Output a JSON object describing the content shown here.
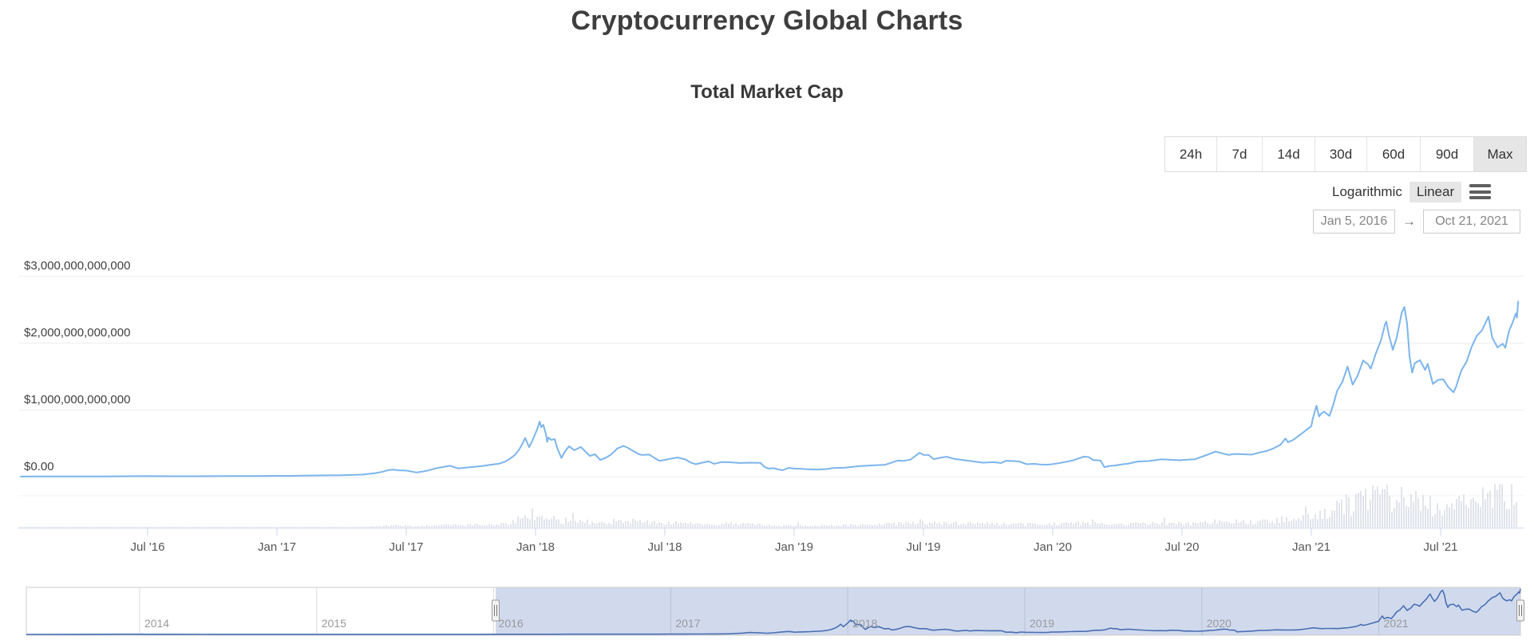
{
  "page": {
    "title": "Cryptocurrency Global Charts",
    "subtitle": "Total Market Cap"
  },
  "range_selector": {
    "buttons": [
      {
        "label": "24h",
        "selected": false
      },
      {
        "label": "7d",
        "selected": false
      },
      {
        "label": "14d",
        "selected": false
      },
      {
        "label": "30d",
        "selected": false
      },
      {
        "label": "60d",
        "selected": false
      },
      {
        "label": "90d",
        "selected": false
      },
      {
        "label": "Max",
        "selected": true
      }
    ]
  },
  "scale_toggle": {
    "options": [
      {
        "label": "Logarithmic",
        "selected": false
      },
      {
        "label": "Linear",
        "selected": true
      }
    ]
  },
  "date_range": {
    "start": "Jan 5, 2016",
    "separator": "→",
    "end": "Oct 21, 2021"
  },
  "chart_data": {
    "type": "line",
    "title": "Total Market Cap",
    "unit": "USD",
    "line_color": "#7cb5ec",
    "grid_color": "#ededef",
    "axis_line_color": "#ccd6eb",
    "volume_bar_color": "#c9cedb",
    "y_axis": {
      "tick_labels": [
        "$0.00",
        "$1,000,000,000,000",
        "$2,000,000,000,000",
        "$3,000,000,000,000"
      ],
      "tick_values_trillion_usd": [
        0,
        1,
        2,
        3
      ],
      "range_trillion_usd": [
        0,
        3.2
      ],
      "gridlines": true
    },
    "x_axis": {
      "tick_labels": [
        "Jul '16",
        "Jan '17",
        "Jul '17",
        "Jan '18",
        "Jul '18",
        "Jan '19",
        "Jul '19",
        "Jan '20",
        "Jul '20",
        "Jan '21",
        "Jul '21"
      ],
      "tick_years_since_2016": [
        0.5,
        1,
        1.5,
        2,
        2.5,
        3,
        3.5,
        4,
        4.5,
        5,
        5.5
      ],
      "visible_range": [
        "Jan 5, 2016",
        "Oct 21, 2021"
      ]
    },
    "series": [
      {
        "name": "Total Market Cap",
        "points_year_usd_billion": [
          [
            0.01,
            7.5
          ],
          [
            0.08,
            8
          ],
          [
            0.16,
            8.3
          ],
          [
            0.25,
            8.8
          ],
          [
            0.33,
            9.4
          ],
          [
            0.42,
            12
          ],
          [
            0.47,
            13.5
          ],
          [
            0.5,
            13
          ],
          [
            0.58,
            12
          ],
          [
            0.67,
            12.3
          ],
          [
            0.75,
            13
          ],
          [
            0.83,
            13.8
          ],
          [
            0.92,
            14.8
          ],
          [
            1.0,
            17.5
          ],
          [
            1.04,
            16.5
          ],
          [
            1.08,
            19
          ],
          [
            1.17,
            24
          ],
          [
            1.25,
            27
          ],
          [
            1.3,
            32
          ],
          [
            1.33,
            36
          ],
          [
            1.38,
            58
          ],
          [
            1.41,
            80
          ],
          [
            1.43,
            102
          ],
          [
            1.45,
            110
          ],
          [
            1.47,
            100
          ],
          [
            1.5,
            96
          ],
          [
            1.54,
            68
          ],
          [
            1.56,
            78
          ],
          [
            1.58,
            94
          ],
          [
            1.62,
            135
          ],
          [
            1.65,
            155
          ],
          [
            1.67,
            168
          ],
          [
            1.7,
            128
          ],
          [
            1.73,
            140
          ],
          [
            1.75,
            148
          ],
          [
            1.79,
            162
          ],
          [
            1.83,
            185
          ],
          [
            1.86,
            200
          ],
          [
            1.88,
            225
          ],
          [
            1.9,
            270
          ],
          [
            1.92,
            330
          ],
          [
            1.935,
            400
          ],
          [
            1.95,
            500
          ],
          [
            1.96,
            585
          ],
          [
            1.975,
            445
          ],
          [
            1.985,
            520
          ],
          [
            1.99,
            565
          ],
          [
            2.005,
            700
          ],
          [
            2.016,
            828
          ],
          [
            2.022,
            745
          ],
          [
            2.03,
            780
          ],
          [
            2.04,
            640
          ],
          [
            2.045,
            525
          ],
          [
            2.05,
            590
          ],
          [
            2.06,
            555
          ],
          [
            2.074,
            565
          ],
          [
            2.085,
            420
          ],
          [
            2.1,
            285
          ],
          [
            2.115,
            390
          ],
          [
            2.13,
            460
          ],
          [
            2.15,
            400
          ],
          [
            2.175,
            448
          ],
          [
            2.19,
            390
          ],
          [
            2.21,
            315
          ],
          [
            2.23,
            340
          ],
          [
            2.25,
            255
          ],
          [
            2.27,
            285
          ],
          [
            2.29,
            330
          ],
          [
            2.31,
            400
          ],
          [
            2.315,
            425
          ],
          [
            2.34,
            465
          ],
          [
            2.36,
            430
          ],
          [
            2.37,
            405
          ],
          [
            2.4,
            340
          ],
          [
            2.41,
            330
          ],
          [
            2.44,
            335
          ],
          [
            2.46,
            285
          ],
          [
            2.48,
            242
          ],
          [
            2.5,
            256
          ],
          [
            2.52,
            272
          ],
          [
            2.55,
            292
          ],
          [
            2.57,
            270
          ],
          [
            2.58,
            262
          ],
          [
            2.6,
            215
          ],
          [
            2.62,
            192
          ],
          [
            2.64,
            210
          ],
          [
            2.67,
            233
          ],
          [
            2.69,
            197
          ],
          [
            2.72,
            224
          ],
          [
            2.75,
            220
          ],
          [
            2.79,
            209
          ],
          [
            2.83,
            214
          ],
          [
            2.87,
            211
          ],
          [
            2.885,
            152
          ],
          [
            2.9,
            126
          ],
          [
            2.92,
            132
          ],
          [
            2.94,
            112
          ],
          [
            2.955,
            101
          ],
          [
            2.97,
            125
          ],
          [
            2.98,
            136
          ],
          [
            3.0,
            126
          ],
          [
            3.03,
            121
          ],
          [
            3.06,
            114
          ],
          [
            3.09,
            112
          ],
          [
            3.13,
            120
          ],
          [
            3.15,
            134
          ],
          [
            3.2,
            140
          ],
          [
            3.25,
            162
          ],
          [
            3.31,
            176
          ],
          [
            3.35,
            181
          ],
          [
            3.4,
            245
          ],
          [
            3.42,
            240
          ],
          [
            3.45,
            260
          ],
          [
            3.485,
            362
          ],
          [
            3.5,
            330
          ],
          [
            3.52,
            328
          ],
          [
            3.54,
            266
          ],
          [
            3.57,
            292
          ],
          [
            3.59,
            302
          ],
          [
            3.62,
            270
          ],
          [
            3.655,
            252
          ],
          [
            3.7,
            230
          ],
          [
            3.73,
            214
          ],
          [
            3.77,
            222
          ],
          [
            3.8,
            210
          ],
          [
            3.82,
            243
          ],
          [
            3.85,
            238
          ],
          [
            3.87,
            232
          ],
          [
            3.9,
            192
          ],
          [
            3.93,
            196
          ],
          [
            3.95,
            188
          ],
          [
            3.98,
            184
          ],
          [
            4.0,
            192
          ],
          [
            4.04,
            218
          ],
          [
            4.08,
            250
          ],
          [
            4.12,
            305
          ],
          [
            4.14,
            297
          ],
          [
            4.155,
            255
          ],
          [
            4.185,
            245
          ],
          [
            4.2,
            148
          ],
          [
            4.22,
            165
          ],
          [
            4.24,
            172
          ],
          [
            4.27,
            190
          ],
          [
            4.29,
            198
          ],
          [
            4.33,
            232
          ],
          [
            4.37,
            238
          ],
          [
            4.4,
            252
          ],
          [
            4.42,
            264
          ],
          [
            4.45,
            258
          ],
          [
            4.49,
            250
          ],
          [
            4.52,
            258
          ],
          [
            4.55,
            265
          ],
          [
            4.59,
            322
          ],
          [
            4.63,
            380
          ],
          [
            4.65,
            360
          ],
          [
            4.68,
            330
          ],
          [
            4.7,
            342
          ],
          [
            4.72,
            344
          ],
          [
            4.75,
            338
          ],
          [
            4.77,
            334
          ],
          [
            4.805,
            372
          ],
          [
            4.83,
            392
          ],
          [
            4.85,
            422
          ],
          [
            4.88,
            480
          ],
          [
            4.9,
            575
          ],
          [
            4.91,
            520
          ],
          [
            4.93,
            555
          ],
          [
            4.96,
            640
          ],
          [
            4.98,
            700
          ],
          [
            5.0,
            760
          ],
          [
            5.005,
            860
          ],
          [
            5.02,
            1065
          ],
          [
            5.03,
            905
          ],
          [
            5.04,
            955
          ],
          [
            5.05,
            975
          ],
          [
            5.07,
            912
          ],
          [
            5.085,
            1080
          ],
          [
            5.1,
            1290
          ],
          [
            5.12,
            1420
          ],
          [
            5.14,
            1650
          ],
          [
            5.16,
            1380
          ],
          [
            5.18,
            1520
          ],
          [
            5.2,
            1740
          ],
          [
            5.22,
            1680
          ],
          [
            5.23,
            1620
          ],
          [
            5.25,
            1850
          ],
          [
            5.27,
            2050
          ],
          [
            5.285,
            2280
          ],
          [
            5.29,
            2320
          ],
          [
            5.3,
            2120
          ],
          [
            5.315,
            1900
          ],
          [
            5.33,
            2080
          ],
          [
            5.35,
            2460
          ],
          [
            5.36,
            2540
          ],
          [
            5.37,
            2300
          ],
          [
            5.38,
            1800
          ],
          [
            5.39,
            1560
          ],
          [
            5.4,
            1700
          ],
          [
            5.42,
            1745
          ],
          [
            5.44,
            1600
          ],
          [
            5.45,
            1690
          ],
          [
            5.47,
            1390
          ],
          [
            5.49,
            1450
          ],
          [
            5.51,
            1460
          ],
          [
            5.53,
            1340
          ],
          [
            5.55,
            1265
          ],
          [
            5.56,
            1350
          ],
          [
            5.58,
            1590
          ],
          [
            5.6,
            1720
          ],
          [
            5.62,
            1945
          ],
          [
            5.64,
            2110
          ],
          [
            5.66,
            2190
          ],
          [
            5.685,
            2395
          ],
          [
            5.7,
            2080
          ],
          [
            5.72,
            1935
          ],
          [
            5.74,
            1990
          ],
          [
            5.75,
            1930
          ],
          [
            5.765,
            2190
          ],
          [
            5.78,
            2320
          ],
          [
            5.79,
            2440
          ],
          [
            5.795,
            2380
          ],
          [
            5.8,
            2620
          ]
        ]
      }
    ],
    "navigator": {
      "year_labels": [
        "2014",
        "2015",
        "2016",
        "2017",
        "2018",
        "2019",
        "2020",
        "2021"
      ],
      "selected_range": [
        "Jan 5, 2016",
        "Oct 21, 2021"
      ],
      "mask_color": "rgba(102,133,194,0.3)",
      "line_color": "#4a6fb3",
      "outline_color": "#cccccc",
      "pre2016_points_year_usd_billion": [
        [
          -2.64,
          1.4
        ],
        [
          -2.35,
          2.5
        ],
        [
          -2.05,
          14
        ],
        [
          -1.95,
          11
        ],
        [
          -1.8,
          8
        ],
        [
          -1.55,
          6
        ],
        [
          -1.2,
          5
        ],
        [
          -0.8,
          4.6
        ],
        [
          -0.4,
          4.8
        ],
        [
          -0.1,
          6.5
        ]
      ]
    }
  }
}
